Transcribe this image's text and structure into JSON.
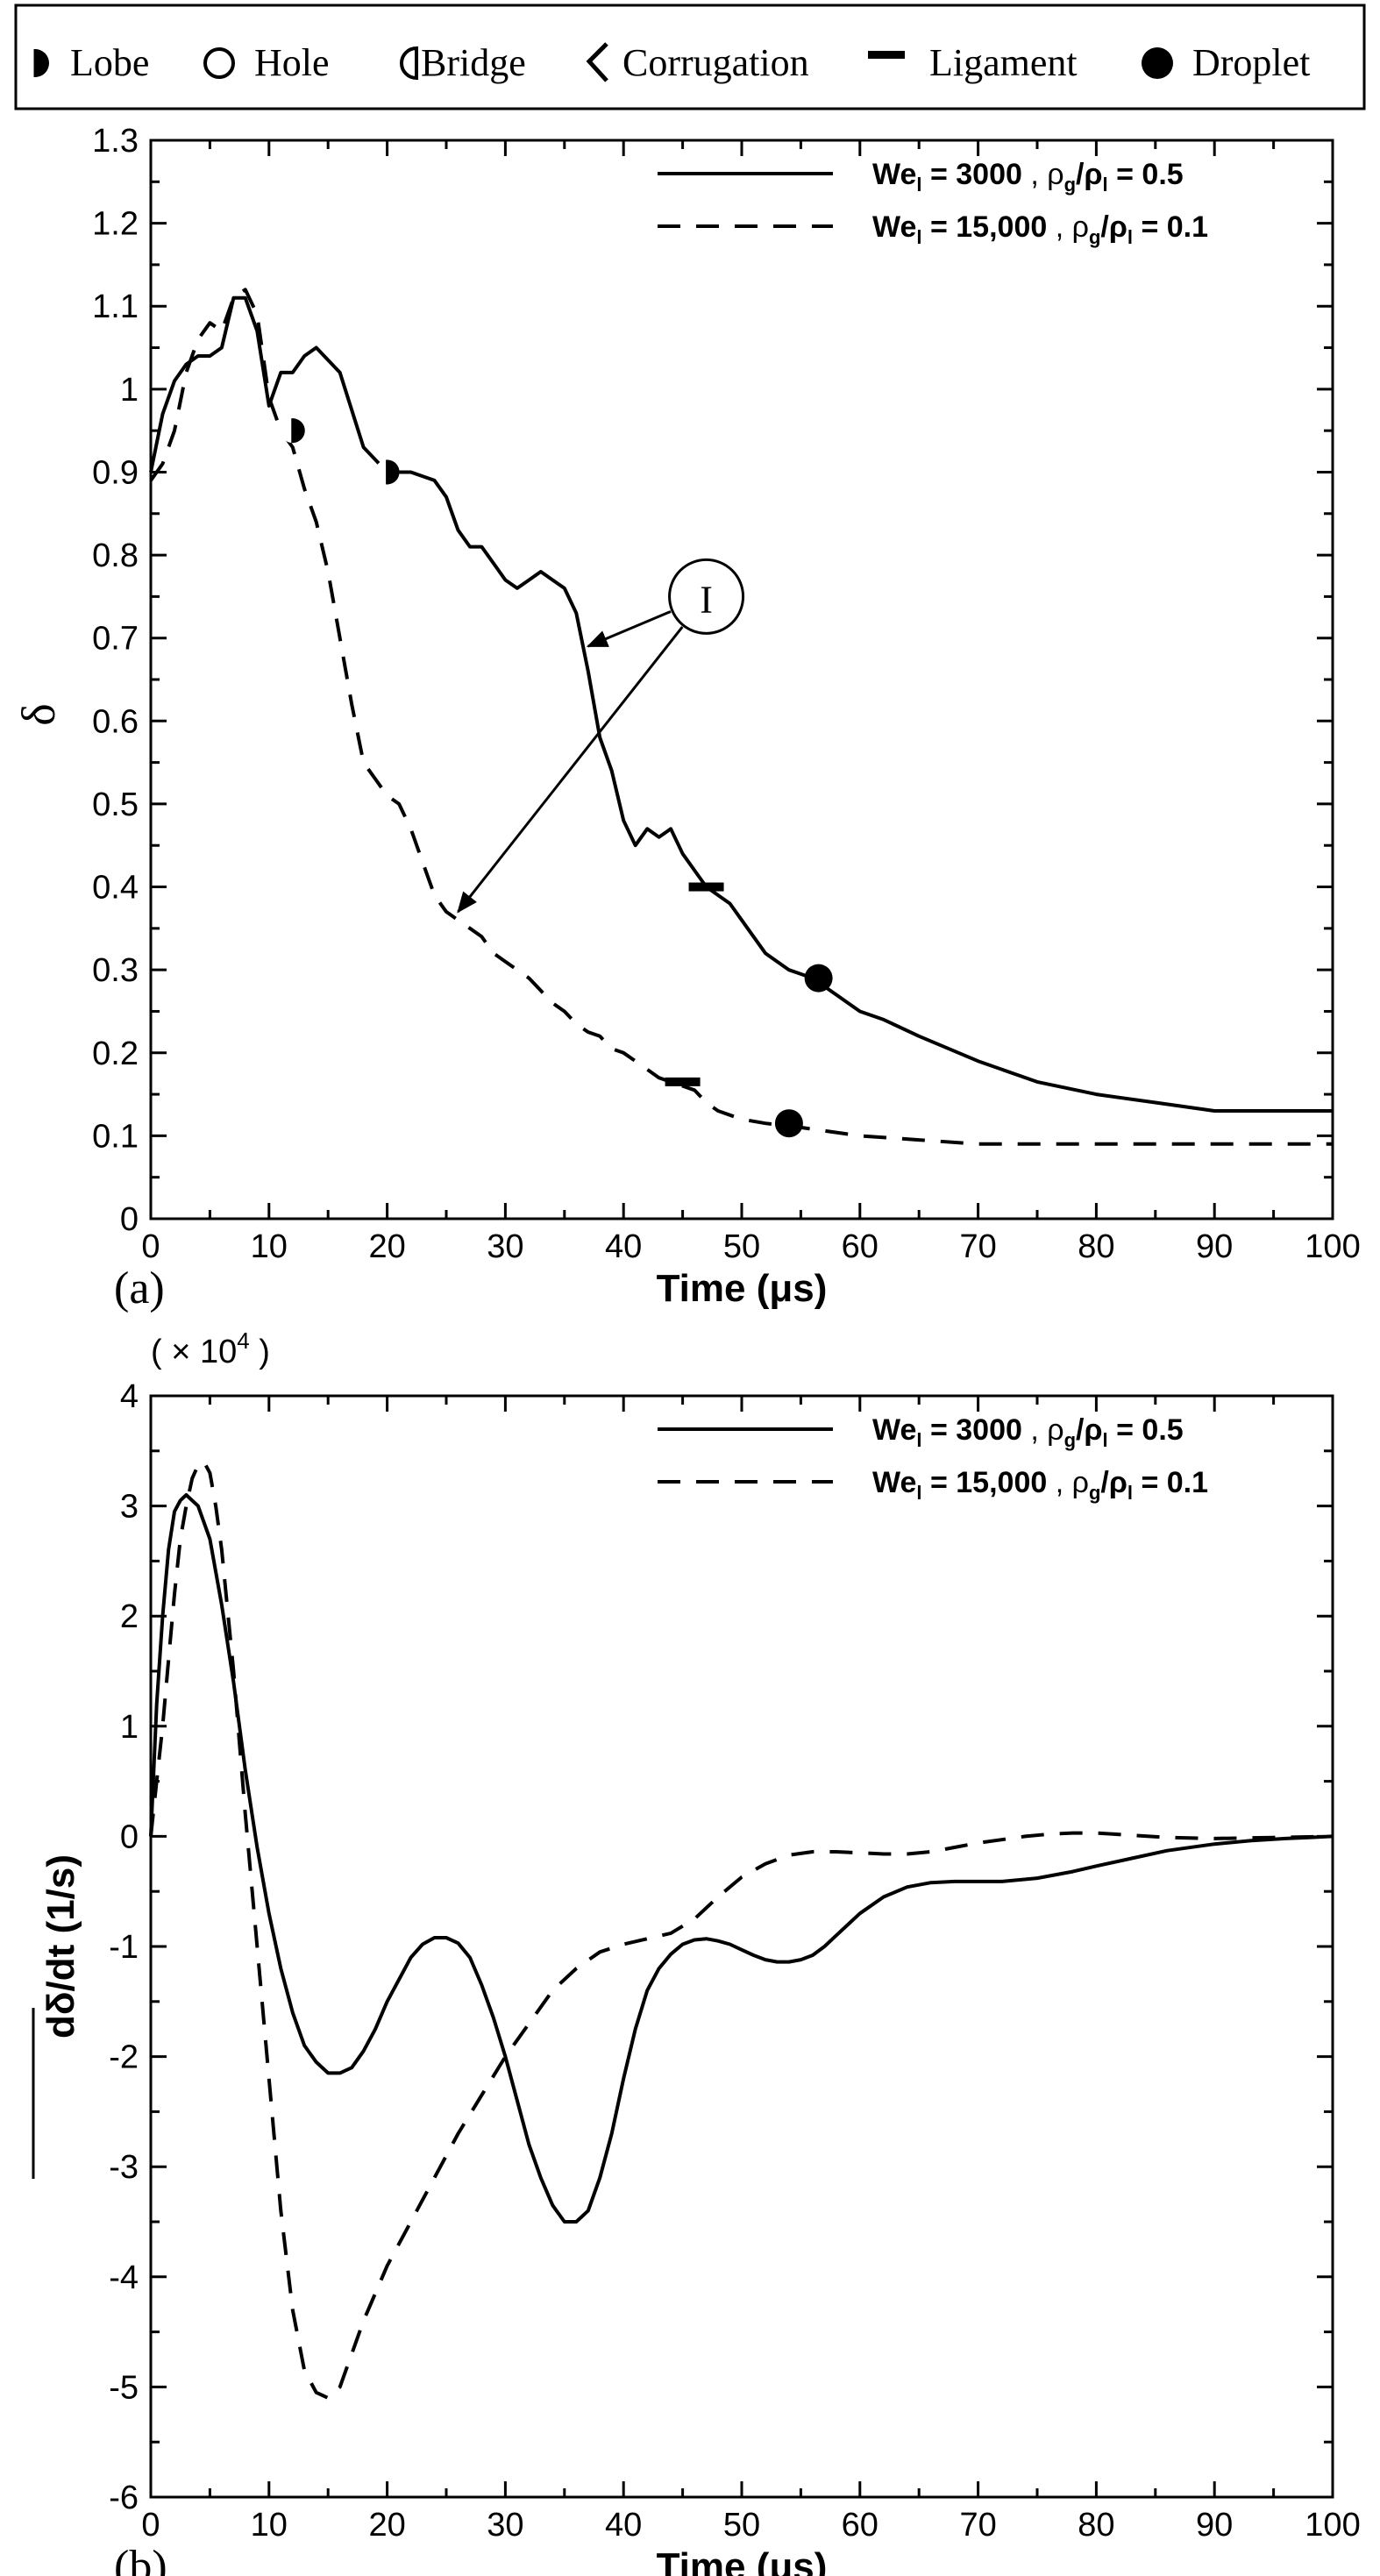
{
  "events_legend": {
    "items": [
      {
        "label": "Lobe",
        "icon": "half-filled-circle-icon"
      },
      {
        "label": "Hole",
        "icon": "open-circle-icon"
      },
      {
        "label": "Bridge",
        "icon": "d-shape-icon"
      },
      {
        "label": "Corrugation",
        "icon": "zigzag-icon"
      },
      {
        "label": "Ligament",
        "icon": "dash-icon"
      },
      {
        "label": "Droplet",
        "icon": "filled-circle-icon"
      }
    ]
  },
  "series_styles": {
    "s1": "solid",
    "s2": "dashed",
    "color": "#000000"
  },
  "chart_data": [
    {
      "type": "line",
      "panel_label": "(a)",
      "xlabel": "Time (μs)",
      "ylabel": "δ",
      "xlim": [
        0,
        100
      ],
      "ylim": [
        0,
        1.3
      ],
      "xticks": [
        "0",
        "10",
        "20",
        "30",
        "40",
        "50",
        "60",
        "70",
        "80",
        "90",
        "100"
      ],
      "yticks": [
        "0",
        "0.1",
        "0.2",
        "0.3",
        "0.4",
        "0.5",
        "0.6",
        "0.7",
        "0.8",
        "0.9",
        "1",
        "1.1",
        "1.2",
        "1.3"
      ],
      "legend_position": "top-right",
      "series": [
        {
          "legend": {
            "we_main": "We",
            "we_sub": "l",
            "we_val": " = 3000",
            "rho_text": ",  ρ",
            "rho_g": "g",
            "slash": "/ρ",
            "rho_l": "l",
            "ratio": " = 0.5"
          },
          "x": [
            0,
            1,
            2,
            3,
            4,
            5,
            6,
            7,
            8,
            9,
            10,
            11,
            12,
            13,
            14,
            16,
            18,
            20,
            22,
            24,
            25,
            26,
            27,
            28,
            29,
            30,
            31,
            32,
            33,
            34,
            35,
            36,
            37,
            38,
            39,
            40,
            41,
            42,
            43,
            44,
            45,
            46,
            47,
            48,
            49,
            50,
            51,
            52,
            53,
            54,
            55,
            56,
            57,
            58,
            60,
            62,
            65,
            70,
            75,
            80,
            85,
            90,
            95,
            100
          ],
          "y": [
            0.9,
            0.97,
            1.01,
            1.03,
            1.04,
            1.04,
            1.05,
            1.11,
            1.11,
            1.07,
            0.98,
            1.02,
            1.02,
            1.04,
            1.05,
            1.02,
            0.93,
            0.9,
            0.9,
            0.89,
            0.87,
            0.83,
            0.81,
            0.81,
            0.79,
            0.77,
            0.76,
            0.77,
            0.78,
            0.77,
            0.76,
            0.73,
            0.66,
            0.58,
            0.54,
            0.48,
            0.45,
            0.47,
            0.46,
            0.47,
            0.44,
            0.42,
            0.4,
            0.39,
            0.38,
            0.36,
            0.34,
            0.32,
            0.31,
            0.3,
            0.295,
            0.29,
            0.28,
            0.27,
            0.25,
            0.24,
            0.22,
            0.19,
            0.165,
            0.15,
            0.14,
            0.13,
            0.13,
            0.13
          ],
          "events": [
            {
              "type": "lobe",
              "x": 20,
              "y": 0.9
            },
            {
              "type": "ligament",
              "x": 47,
              "y": 0.4
            },
            {
              "type": "droplet",
              "x": 56.5,
              "y": 0.29
            }
          ]
        },
        {
          "legend": {
            "we_main": "We",
            "we_sub": "l",
            "we_val": " = 15,000",
            "rho_text": ", ρ",
            "rho_g": "g",
            "slash": "/ρ",
            "rho_l": "l",
            "ratio": " = 0.1"
          },
          "x": [
            0,
            1,
            2,
            3,
            4,
            5,
            6,
            7,
            8,
            9,
            10,
            11,
            12,
            13,
            14,
            15,
            16,
            17,
            18,
            19,
            20,
            21,
            22,
            23,
            24,
            25,
            26,
            27,
            28,
            29,
            30,
            31,
            32,
            33,
            34,
            35,
            36,
            37,
            38,
            39,
            40,
            41,
            42,
            43,
            44,
            45,
            46,
            47,
            48,
            50,
            52,
            55,
            60,
            65,
            70,
            75,
            80,
            85,
            90,
            95,
            100
          ],
          "y": [
            0.89,
            0.91,
            0.95,
            1.02,
            1.06,
            1.08,
            1.07,
            1.11,
            1.12,
            1.09,
            0.99,
            0.95,
            0.93,
            0.88,
            0.84,
            0.78,
            0.7,
            0.62,
            0.55,
            0.53,
            0.51,
            0.5,
            0.47,
            0.43,
            0.39,
            0.37,
            0.36,
            0.35,
            0.34,
            0.32,
            0.31,
            0.3,
            0.29,
            0.275,
            0.26,
            0.25,
            0.235,
            0.225,
            0.22,
            0.205,
            0.2,
            0.19,
            0.18,
            0.17,
            0.165,
            0.16,
            0.155,
            0.14,
            0.13,
            0.12,
            0.115,
            0.11,
            0.1,
            0.095,
            0.09,
            0.09,
            0.09,
            0.09,
            0.09,
            0.09,
            0.09
          ],
          "events": [
            {
              "type": "lobe",
              "x": 12,
              "y": 0.95
            },
            {
              "type": "ligament",
              "x": 45,
              "y": 0.165
            },
            {
              "type": "droplet",
              "x": 54,
              "y": 0.115
            }
          ]
        }
      ],
      "annotation": {
        "label": "I",
        "circle_at": {
          "x": 47,
          "y": 0.75
        },
        "arrows_to": [
          {
            "x": 37,
            "y": 0.69
          },
          {
            "x": 26,
            "y": 0.37
          }
        ]
      }
    },
    {
      "type": "line",
      "panel_label": "(b)",
      "xlabel": "Time (μs)",
      "ylabel": "dδ/dt (1/s)",
      "multiplier": "( × 10",
      "multiplier_exp": "4",
      "multiplier_close": " )",
      "xlim": [
        0,
        100
      ],
      "ylim": [
        -6,
        4
      ],
      "xticks": [
        "0",
        "10",
        "20",
        "30",
        "40",
        "50",
        "60",
        "70",
        "80",
        "90",
        "100"
      ],
      "yticks": [
        "-6",
        "-5",
        "-4",
        "-3",
        "-2",
        "-1",
        "0",
        "1",
        "2",
        "3",
        "4"
      ],
      "legend_position": "top-right",
      "series": [
        {
          "legend": {
            "we_main": "We",
            "we_sub": "l",
            "we_val": " = 3000",
            "rho_text": ",  ρ",
            "rho_g": "g",
            "slash": "/ρ",
            "rho_l": "l",
            "ratio": " = 0.5"
          },
          "x": [
            0,
            0.5,
            1,
            1.5,
            2,
            2.5,
            3,
            4,
            5,
            6,
            7,
            8,
            9,
            10,
            11,
            12,
            13,
            14,
            15,
            16,
            17,
            18,
            19,
            20,
            21,
            22,
            23,
            24,
            25,
            26,
            27,
            28,
            29,
            30,
            31,
            32,
            33,
            34,
            35,
            36,
            37,
            38,
            39,
            40,
            41,
            42,
            43,
            44,
            45,
            46,
            47,
            48,
            49,
            50,
            51,
            52,
            53,
            54,
            55,
            56,
            57,
            58,
            59,
            60,
            62,
            64,
            66,
            68,
            70,
            72,
            75,
            78,
            80,
            83,
            86,
            90,
            93,
            96,
            98,
            100
          ],
          "y": [
            0.0,
            1.2,
            2.0,
            2.6,
            2.95,
            3.05,
            3.1,
            3.0,
            2.7,
            2.1,
            1.4,
            0.6,
            -0.1,
            -0.7,
            -1.2,
            -1.6,
            -1.9,
            -2.05,
            -2.15,
            -2.15,
            -2.1,
            -1.95,
            -1.75,
            -1.5,
            -1.3,
            -1.1,
            -0.98,
            -0.92,
            -0.92,
            -0.97,
            -1.1,
            -1.35,
            -1.65,
            -2.0,
            -2.4,
            -2.8,
            -3.1,
            -3.35,
            -3.5,
            -3.5,
            -3.4,
            -3.1,
            -2.7,
            -2.2,
            -1.75,
            -1.4,
            -1.2,
            -1.07,
            -0.98,
            -0.94,
            -0.93,
            -0.95,
            -0.98,
            -1.03,
            -1.08,
            -1.12,
            -1.14,
            -1.14,
            -1.12,
            -1.08,
            -1.0,
            -0.9,
            -0.8,
            -0.7,
            -0.55,
            -0.46,
            -0.42,
            -0.41,
            -0.41,
            -0.41,
            -0.38,
            -0.32,
            -0.27,
            -0.2,
            -0.13,
            -0.07,
            -0.04,
            -0.02,
            -0.01,
            0.0
          ]
        },
        {
          "legend": {
            "we_main": "We",
            "we_sub": "l",
            "we_val": " = 15,000",
            "rho_text": ", ρ",
            "rho_g": "g",
            "slash": "/ρ",
            "rho_l": "l",
            "ratio": " = 0.1"
          },
          "x": [
            0,
            0.5,
            1,
            1.5,
            2,
            2.5,
            3,
            3.5,
            4,
            4.5,
            5,
            5.5,
            6,
            7,
            8,
            9,
            10,
            11,
            12,
            13,
            14,
            15,
            16,
            17,
            18,
            19,
            20,
            22,
            24,
            26,
            28,
            30,
            32,
            34,
            36,
            38,
            40,
            42,
            44,
            46,
            48,
            50,
            52,
            54,
            56,
            58,
            60,
            62,
            64,
            66,
            68,
            70,
            72,
            74,
            76,
            78,
            80,
            83,
            86,
            90,
            95,
            100
          ],
          "y": [
            0.0,
            0.5,
            1.0,
            1.6,
            2.2,
            2.7,
            3.0,
            3.25,
            3.37,
            3.4,
            3.3,
            3.0,
            2.6,
            1.5,
            0.2,
            -1.0,
            -2.2,
            -3.4,
            -4.3,
            -4.85,
            -5.05,
            -5.1,
            -5.0,
            -4.7,
            -4.4,
            -4.15,
            -3.9,
            -3.5,
            -3.1,
            -2.7,
            -2.35,
            -2.0,
            -1.7,
            -1.4,
            -1.2,
            -1.05,
            -0.98,
            -0.93,
            -0.88,
            -0.75,
            -0.55,
            -0.37,
            -0.25,
            -0.17,
            -0.14,
            -0.14,
            -0.15,
            -0.16,
            -0.16,
            -0.14,
            -0.1,
            -0.06,
            -0.03,
            0.0,
            0.02,
            0.03,
            0.03,
            0.01,
            -0.01,
            -0.02,
            -0.01,
            0.0
          ]
        }
      ]
    }
  ]
}
